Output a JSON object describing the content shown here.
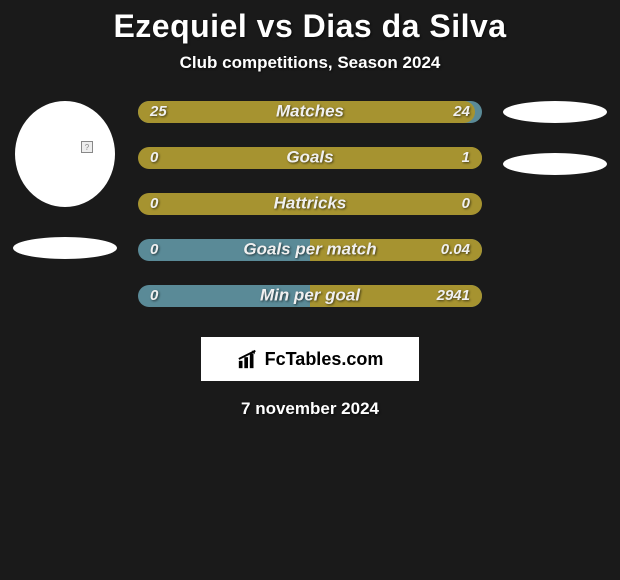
{
  "title": "Ezequiel vs Dias da Silva",
  "subtitle": "Club competitions, Season 2024",
  "date": "7 november 2024",
  "brand": "FcTables.com",
  "colors": {
    "background": "#1a1a1a",
    "bar_left_bg": "#5a8a97",
    "bar_right_bg": "#5a8a97",
    "fill_left": "#a69330",
    "fill_right": "#a69330",
    "text": "#ffffff"
  },
  "players": {
    "left": "Ezequiel",
    "right": "Dias da Silva"
  },
  "stats": [
    {
      "label": "Matches",
      "left_value": "25",
      "right_value": "24",
      "left_fill_pct": 100,
      "right_fill_pct": 96,
      "left_fill_color": "#a69330",
      "right_fill_color": "#a69330",
      "bg_color": "#5a8a97"
    },
    {
      "label": "Goals",
      "left_value": "0",
      "right_value": "1",
      "left_fill_pct": 0,
      "right_fill_pct": 100,
      "left_fill_color": "#a69330",
      "right_fill_color": "#a69330",
      "bg_color": "#a69330"
    },
    {
      "label": "Hattricks",
      "left_value": "0",
      "right_value": "0",
      "left_fill_pct": 0,
      "right_fill_pct": 0,
      "left_fill_color": "#a69330",
      "right_fill_color": "#a69330",
      "bg_color": "#a69330"
    },
    {
      "label": "Goals per match",
      "left_value": "0",
      "right_value": "0.04",
      "left_fill_pct": 0,
      "right_fill_pct": 100,
      "left_fill_color": "#a69330",
      "right_fill_color": "#a69330",
      "bg_color": "#5a8a97"
    },
    {
      "label": "Min per goal",
      "left_value": "0",
      "right_value": "2941",
      "left_fill_pct": 0,
      "right_fill_pct": 100,
      "left_fill_color": "#a69330",
      "right_fill_color": "#a69330",
      "bg_color": "#5a8a97"
    }
  ]
}
